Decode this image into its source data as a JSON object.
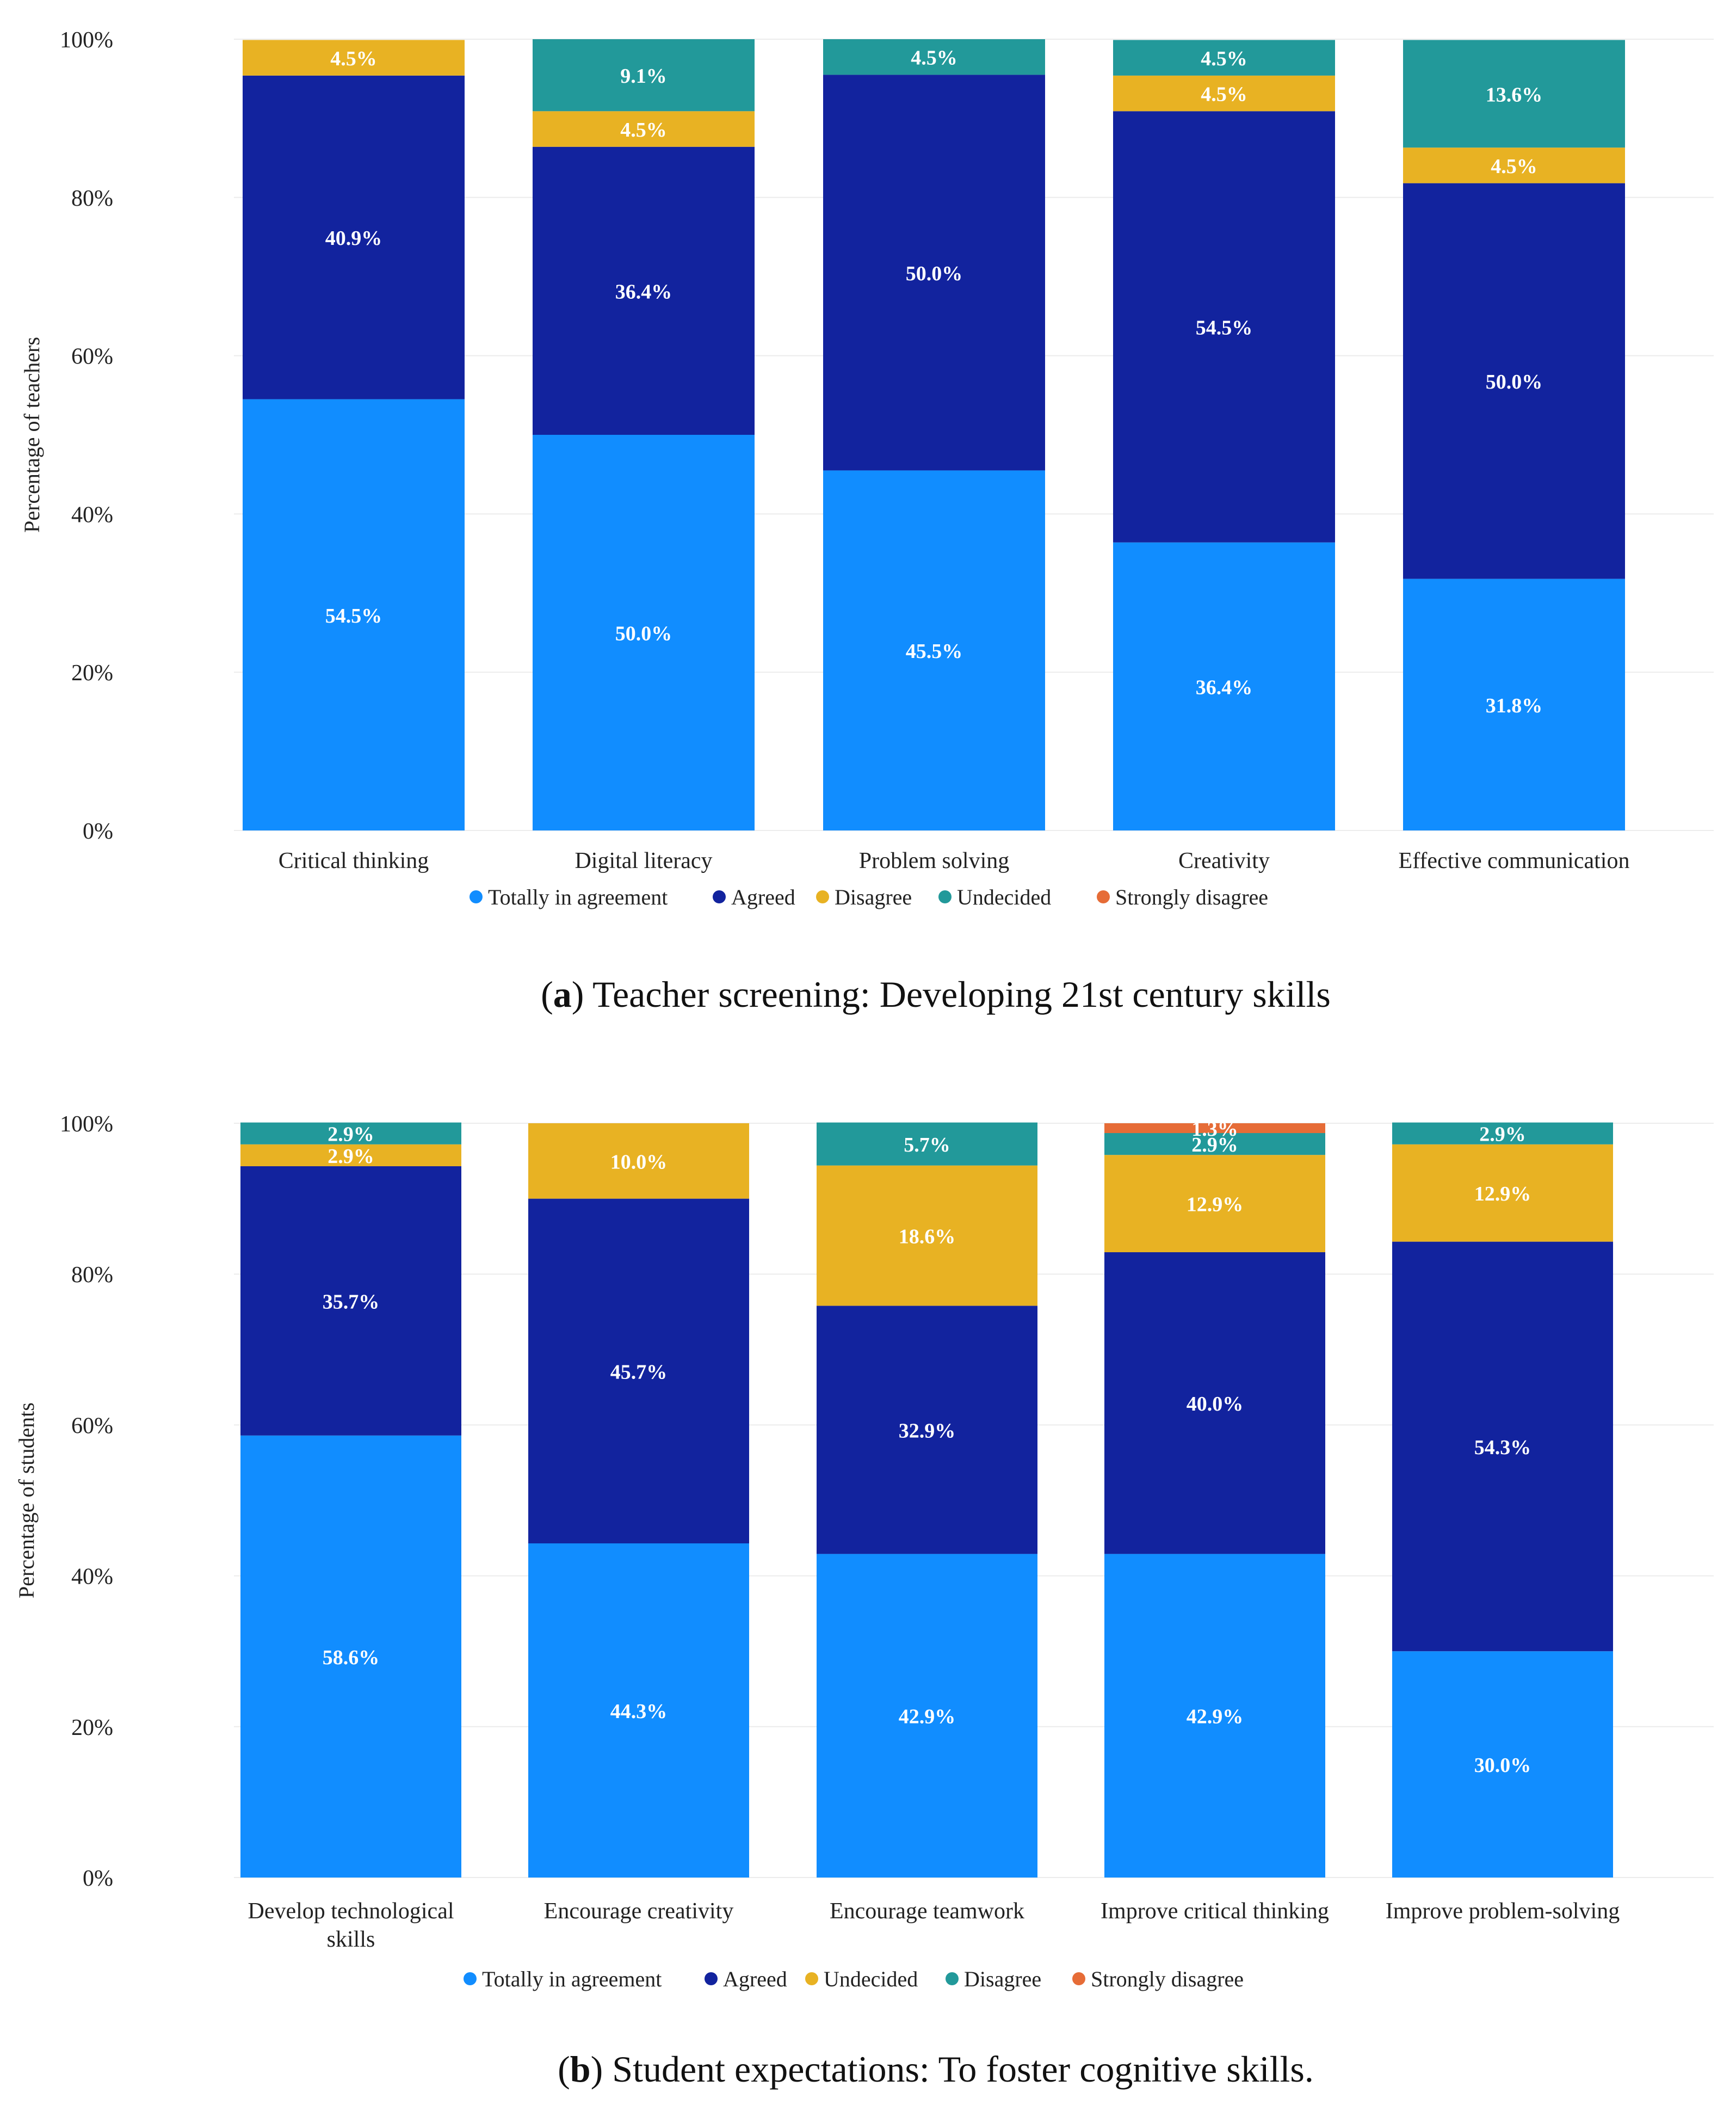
{
  "colors": {
    "totally": "#118dff",
    "agreed": "#12239e",
    "yellow": "#e8b223",
    "teal": "#22999a",
    "strongly": "#e66c37",
    "grid": "#ececec"
  },
  "chart_data": [
    {
      "type": "bar",
      "stacked": true,
      "panel": "a",
      "ylabel": "Percentage of teachers",
      "ylim": [
        0,
        100
      ],
      "yticks": [
        "0%",
        "20%",
        "40%",
        "60%",
        "80%",
        "100%"
      ],
      "categories": [
        [
          "Critical thinking"
        ],
        [
          "Digital literacy"
        ],
        [
          "Problem solving"
        ],
        [
          "Creativity"
        ],
        [
          "Effective communication"
        ]
      ],
      "series": [
        {
          "name": "Totally in agreement",
          "color_key": "totally",
          "values": [
            54.5,
            50.0,
            45.5,
            36.4,
            31.8
          ]
        },
        {
          "name": "Agreed",
          "color_key": "agreed",
          "values": [
            40.9,
            36.4,
            50.0,
            54.5,
            50.0
          ]
        },
        {
          "name": "Disagree",
          "color_key": "yellow",
          "values": [
            4.5,
            4.5,
            0,
            4.5,
            4.5
          ]
        },
        {
          "name": "Undecided",
          "color_key": "teal",
          "values": [
            0,
            9.1,
            4.5,
            4.5,
            13.6
          ]
        },
        {
          "name": "Strongly disagree",
          "color_key": "strongly",
          "values": [
            0,
            0,
            0,
            0,
            0
          ]
        }
      ],
      "legend_position": "bottom",
      "caption_letter": "(a)",
      "caption_text": " Teacher screening: Developing 21st century skills"
    },
    {
      "type": "bar",
      "stacked": true,
      "panel": "b",
      "ylabel": "Percentage of students",
      "ylim": [
        0,
        100
      ],
      "yticks": [
        "0%",
        "20%",
        "40%",
        "60%",
        "80%",
        "100%"
      ],
      "categories": [
        [
          "Develop technological",
          "skills"
        ],
        [
          "Encourage creativity"
        ],
        [
          "Encourage teamwork"
        ],
        [
          "Improve critical thinking"
        ],
        [
          "Improve problem-solving"
        ]
      ],
      "series": [
        {
          "name": "Totally in agreement",
          "color_key": "totally",
          "values": [
            58.6,
            44.3,
            42.9,
            42.9,
            30.0
          ]
        },
        {
          "name": "Agreed",
          "color_key": "agreed",
          "values": [
            35.7,
            45.7,
            32.9,
            40.0,
            54.3
          ]
        },
        {
          "name": "Undecided",
          "color_key": "yellow",
          "values": [
            2.9,
            10.0,
            18.6,
            12.9,
            12.9
          ]
        },
        {
          "name": "Disagree",
          "color_key": "teal",
          "values": [
            2.9,
            0,
            5.7,
            2.9,
            2.9
          ]
        },
        {
          "name": "Strongly disagree",
          "color_key": "strongly",
          "values": [
            0,
            0,
            0,
            1.3,
            0
          ]
        }
      ],
      "legend_position": "bottom",
      "caption_letter": "(b)",
      "caption_text": " Student expectations: To foster cognitive skills."
    }
  ]
}
